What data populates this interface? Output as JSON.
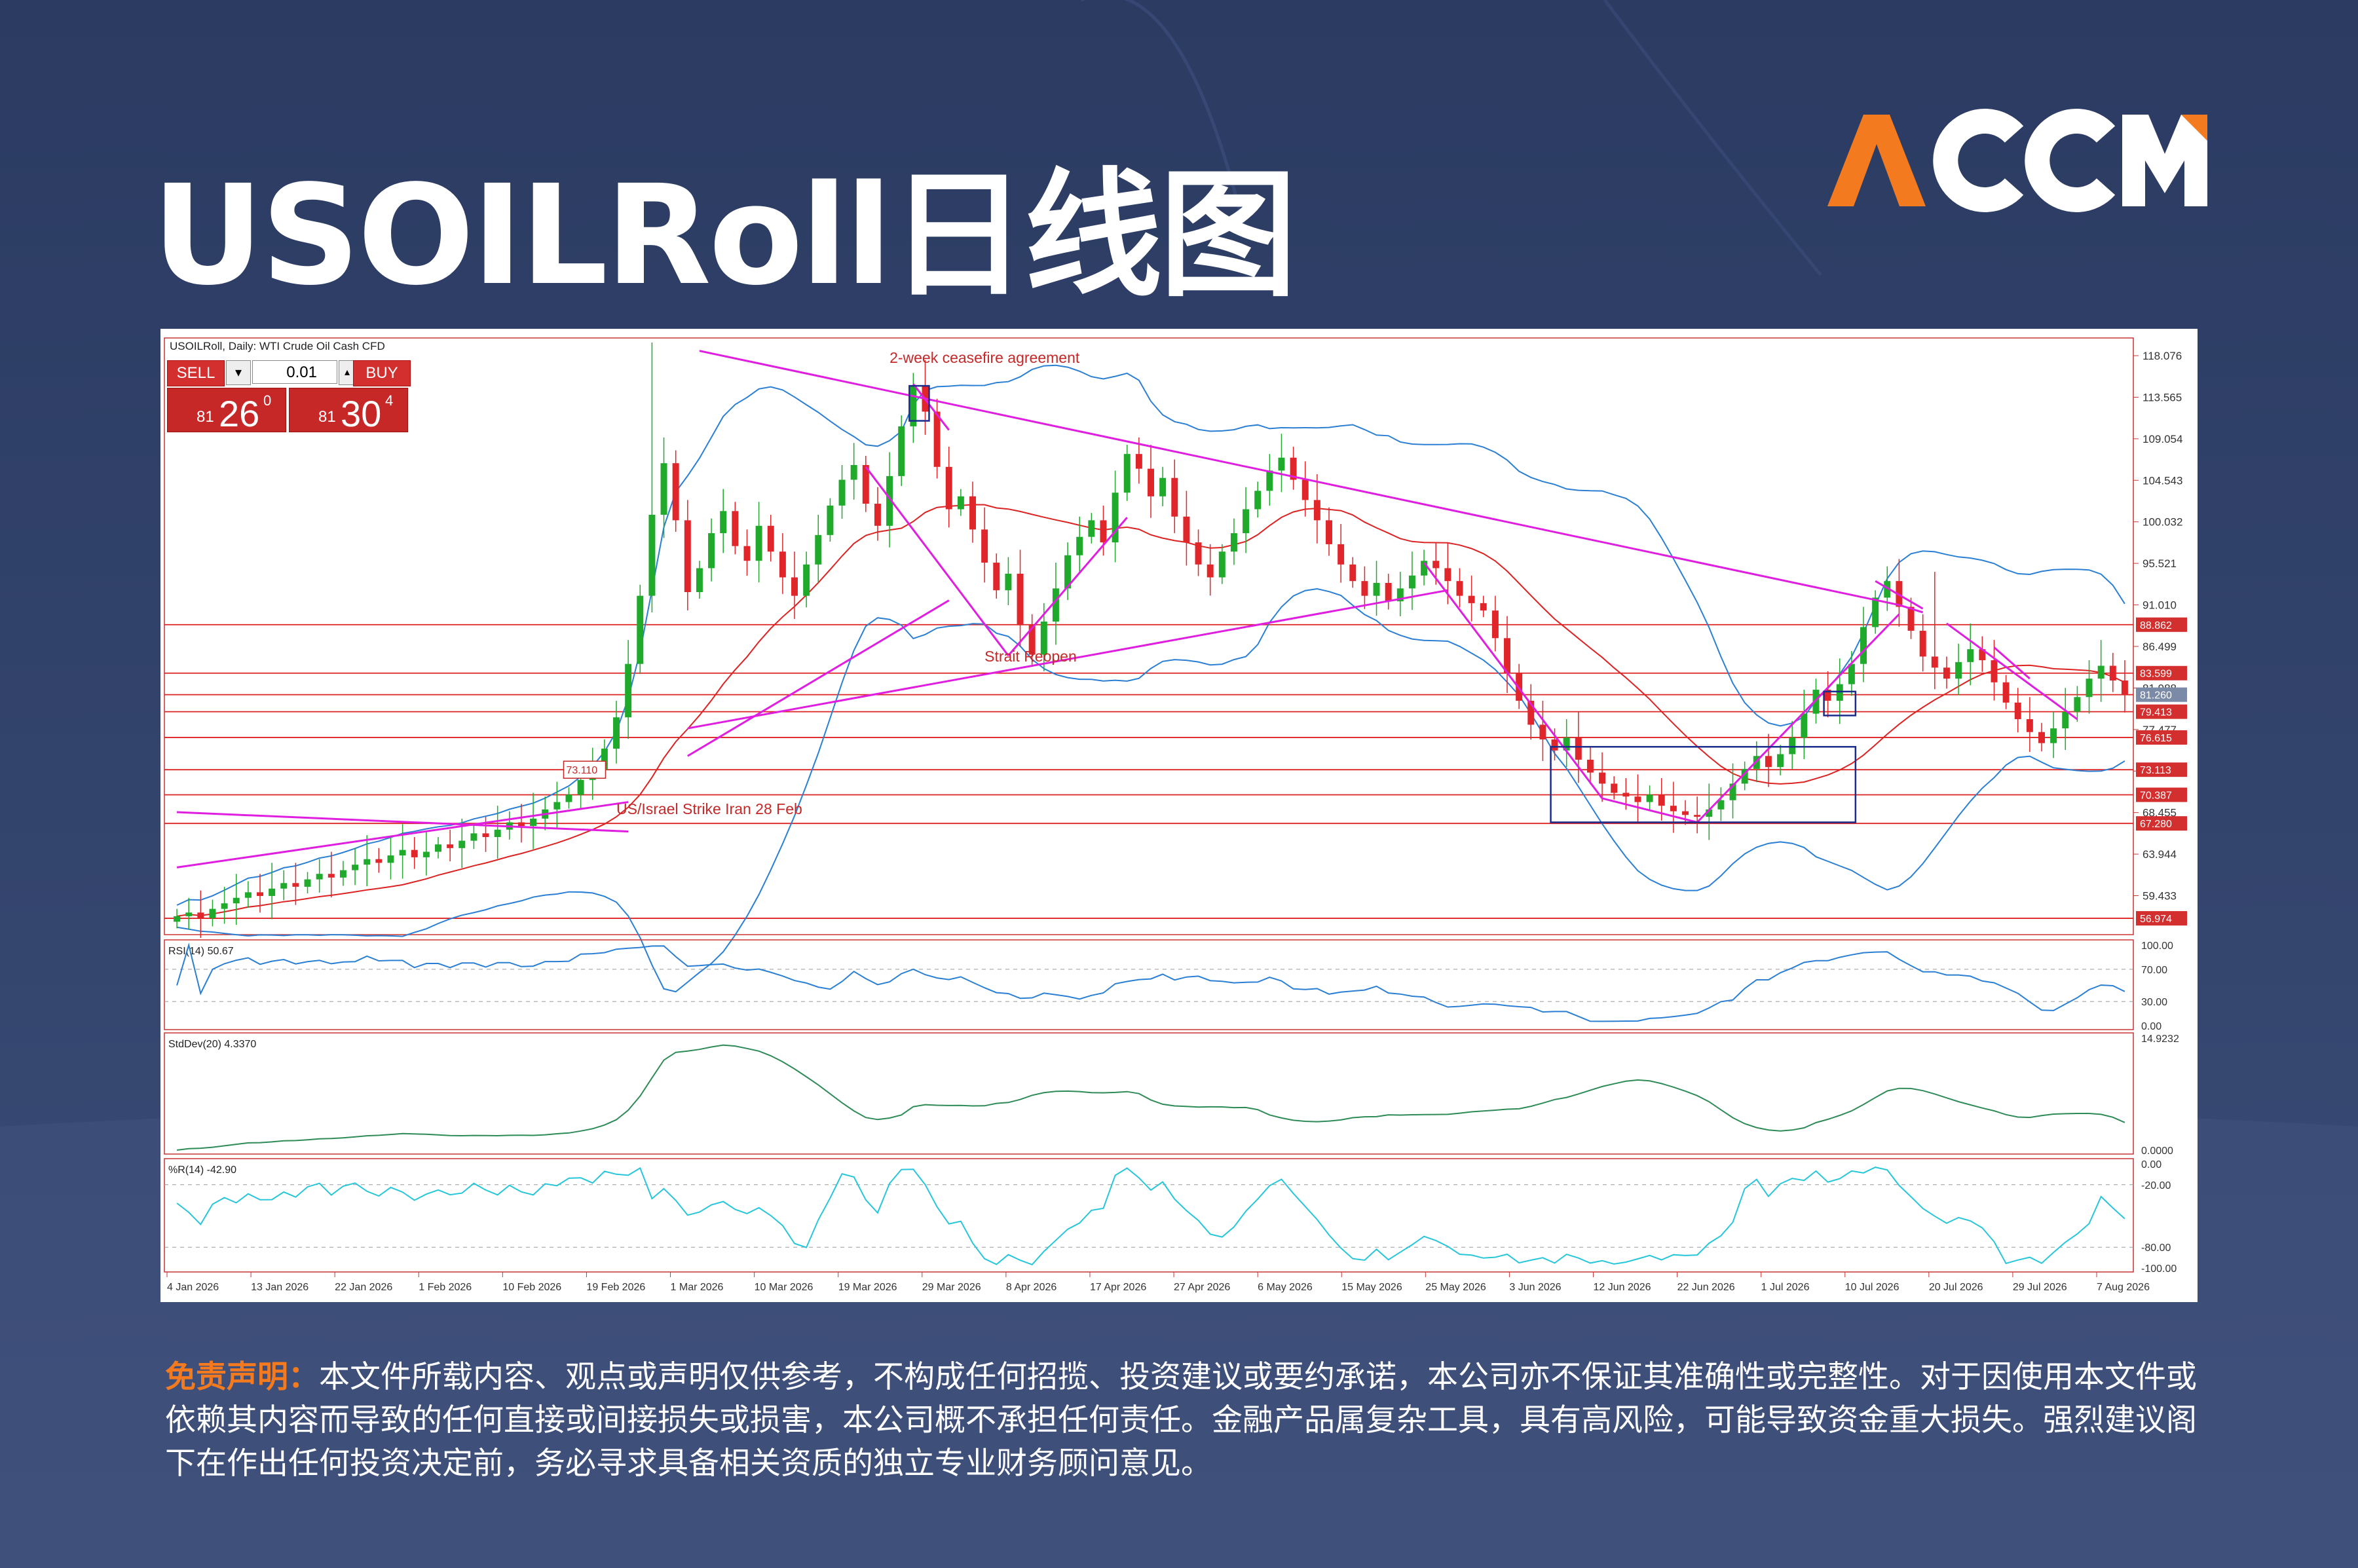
{
  "title": "USOILRoll日线图",
  "logo": {
    "text": "ACCM",
    "color_orange": "#f47a20",
    "color_white": "#ffffff"
  },
  "chart_header": "USOILRoll, Daily: WTI Crude Oil Cash CFD",
  "trade_panel": {
    "sell_label": "SELL",
    "buy_label": "BUY",
    "lot": "0.01",
    "sell_prefix": "81",
    "sell_big": "26",
    "sell_sup": "0",
    "buy_prefix": "81",
    "buy_big": "30",
    "buy_sup": "4"
  },
  "chart_data": {
    "type": "candlestick",
    "symbol": "USOILRoll",
    "timeframe": "Daily",
    "y_axis_ticks": [
      "118.076",
      "113.565",
      "109.054",
      "104.543",
      "100.032",
      "95.521",
      "91.010",
      "86.499",
      "81.988",
      "77.477",
      "72.966",
      "68.455",
      "63.944",
      "59.433"
    ],
    "ylim": [
      55.2,
      120.0
    ],
    "x_ticks": [
      "4 Jan 2026",
      "13 Jan 2026",
      "22 Jan 2026",
      "1 Feb 2026",
      "10 Feb 2026",
      "19 Feb 2026",
      "1 Mar 2026",
      "10 Mar 2026",
      "19 Mar 2026",
      "29 Mar 2026",
      "8 Apr 2026",
      "17 Apr 2026",
      "27 Apr 2026",
      "6 May 2026",
      "15 May 2026",
      "25 May 2026",
      "3 Jun 2026",
      "12 Jun 2026",
      "22 Jun 2026",
      "1 Jul 2026",
      "10 Jul 2026",
      "20 Jul 2026",
      "29 Jul 2026",
      "7 Aug 2026"
    ],
    "horizontal_levels": [
      {
        "value": 88.862,
        "label": "88.862"
      },
      {
        "value": 83.599,
        "label": "83.599"
      },
      {
        "value": 81.26,
        "label": "81.260",
        "current": true
      },
      {
        "value": 79.413,
        "label": "79.413"
      },
      {
        "value": 76.615,
        "label": "76.615"
      },
      {
        "value": 73.113,
        "label": "73.113"
      },
      {
        "value": 70.387,
        "label": "70.387"
      },
      {
        "value": 67.28,
        "label": "67.280"
      },
      {
        "value": 56.974,
        "label": "56.974"
      }
    ],
    "left_price_tag": "73.110",
    "annotations": [
      {
        "text": "2-week ceasefire agreement"
      },
      {
        "text": "Strait Reopen"
      },
      {
        "text": "US/Israel Strike Iran 28 Feb"
      }
    ],
    "closes": [
      57.2,
      57.6,
      57.0,
      58.0,
      58.6,
      59.2,
      59.8,
      59.4,
      60.2,
      60.8,
      60.4,
      61.2,
      61.8,
      61.4,
      62.2,
      62.8,
      63.4,
      63.0,
      63.8,
      64.4,
      63.6,
      64.2,
      65.0,
      64.6,
      65.4,
      66.2,
      65.8,
      66.6,
      67.4,
      67.0,
      67.8,
      68.8,
      69.6,
      70.4,
      72.0,
      73.1,
      75.4,
      78.8,
      84.6,
      92.0,
      100.8,
      106.4,
      100.2,
      92.4,
      95.0,
      98.8,
      101.2,
      97.4,
      95.8,
      99.6,
      96.8,
      94.0,
      92.0,
      95.4,
      98.6,
      101.8,
      104.6,
      106.2,
      102.0,
      99.6,
      105.0,
      110.4,
      114.8,
      112.0,
      106.0,
      101.4,
      102.8,
      99.2,
      95.6,
      92.6,
      94.4,
      88.8,
      85.6,
      89.2,
      92.8,
      96.4,
      98.4,
      100.2,
      97.8,
      103.2,
      107.4,
      105.8,
      102.8,
      104.8,
      100.6,
      97.8,
      95.4,
      94.0,
      96.8,
      98.8,
      101.4,
      103.4,
      105.6,
      107.0,
      104.6,
      102.4,
      100.2,
      97.6,
      95.4,
      93.6,
      92.0,
      93.4,
      91.4,
      92.8,
      94.2,
      95.8,
      95.0,
      93.6,
      92.0,
      91.2,
      90.4,
      87.4,
      83.6,
      80.6,
      78.0,
      76.4,
      75.2,
      76.6,
      74.2,
      72.8,
      71.6,
      70.6,
      70.2,
      69.6,
      70.4,
      69.2,
      68.6,
      68.2,
      68.0,
      68.8,
      69.8,
      71.6,
      73.2,
      74.6,
      73.4,
      74.8,
      76.6,
      79.2,
      81.8,
      80.6,
      82.4,
      84.6,
      88.6,
      91.8,
      93.6,
      90.8,
      88.2,
      85.4,
      84.2,
      83.0,
      84.8,
      86.2,
      85.0,
      82.6,
      80.4,
      78.6,
      77.2,
      76.0,
      77.6,
      79.4,
      81.0,
      83.0,
      84.4,
      82.8,
      81.3
    ]
  },
  "indicators": {
    "rsi": {
      "label": "RSI(14) 50.67",
      "ticks": [
        "100.00",
        "70.00",
        "30.00",
        "0.00"
      ]
    },
    "stddev": {
      "label": "StdDev(20) 4.3370",
      "ticks": [
        "14.9232",
        "0.0000"
      ]
    },
    "wpr": {
      "label": "%R(14) -42.90",
      "ticks": [
        "0.00",
        "-20.00",
        "-80.00",
        "-100.00"
      ]
    }
  },
  "disclaimer": {
    "label": "免责声明：",
    "text": "本文件所载内容、观点或声明仅供参考，不构成任何招揽、投资建议或要约承诺，本公司亦不保证其准确性或完整性。对于因使用本文件或依赖其内容而导致的任何直接或间接损失或损害，本公司概不承担任何责任。金融产品属复杂工具，具有高风险，可能导致资金重大损失。强烈建议阁下在作出任何投资决定前，务必寻求具备相关资质的独立专业财务顾问意见。"
  }
}
